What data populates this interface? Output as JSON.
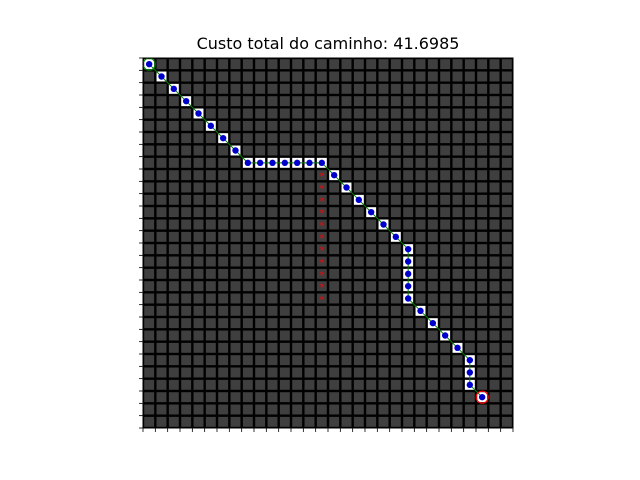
{
  "chart_data": {
    "type": "grid-path",
    "title": "Custo total do caminho: 41.6985",
    "grid": {
      "cols": 30,
      "rows": 30
    },
    "colors": {
      "background": "#ffffff",
      "grid_bg": "#000000",
      "cell": "#3f3f3f",
      "path_cell": "#ffffff",
      "path_line": "#008000",
      "path_marker": "#0000cc",
      "start_ring": "#008000",
      "goal_ring": "#ff0000",
      "obstacle": "#ff0000"
    },
    "start": [
      0,
      0
    ],
    "goal": [
      27,
      27
    ],
    "path": [
      [
        0,
        0
      ],
      [
        1,
        1
      ],
      [
        2,
        2
      ],
      [
        3,
        3
      ],
      [
        4,
        4
      ],
      [
        5,
        5
      ],
      [
        6,
        6
      ],
      [
        7,
        7
      ],
      [
        8,
        8
      ],
      [
        9,
        8
      ],
      [
        10,
        8
      ],
      [
        11,
        8
      ],
      [
        12,
        8
      ],
      [
        13,
        8
      ],
      [
        14,
        8
      ],
      [
        15,
        9
      ],
      [
        16,
        10
      ],
      [
        17,
        11
      ],
      [
        18,
        12
      ],
      [
        19,
        13
      ],
      [
        20,
        14
      ],
      [
        21,
        15
      ],
      [
        21,
        16
      ],
      [
        21,
        17
      ],
      [
        21,
        18
      ],
      [
        21,
        19
      ],
      [
        22,
        20
      ],
      [
        23,
        21
      ],
      [
        24,
        22
      ],
      [
        25,
        23
      ],
      [
        26,
        24
      ],
      [
        26,
        25
      ],
      [
        26,
        26
      ],
      [
        27,
        27
      ]
    ],
    "obstacles": [
      [
        14,
        9
      ],
      [
        14,
        10
      ],
      [
        14,
        11
      ],
      [
        14,
        12
      ],
      [
        14,
        13
      ],
      [
        14,
        14
      ],
      [
        14,
        15
      ],
      [
        14,
        16
      ],
      [
        14,
        17
      ],
      [
        14,
        18
      ],
      [
        14,
        19
      ]
    ],
    "obstacle_symbol": "*"
  }
}
